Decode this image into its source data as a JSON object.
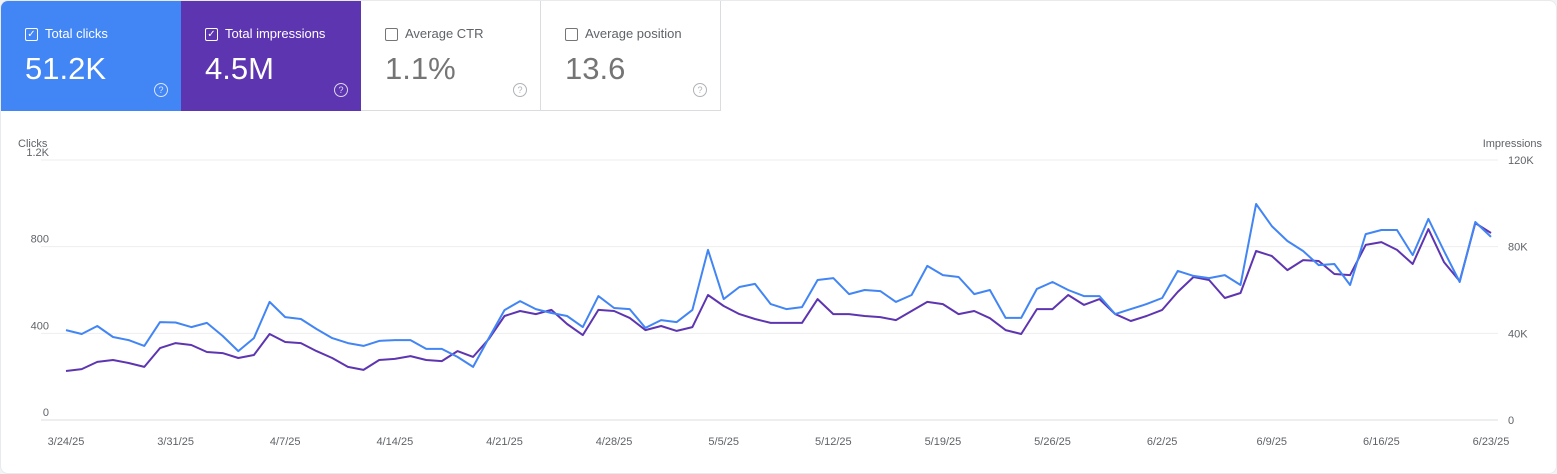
{
  "cards": [
    {
      "label": "Total clicks",
      "value": "51.2K",
      "checked": true,
      "color": "#4285f4"
    },
    {
      "label": "Total impressions",
      "value": "4.5M",
      "checked": true,
      "color": "#5e35b1"
    },
    {
      "label": "Average CTR",
      "value": "1.1%",
      "checked": false
    },
    {
      "label": "Average position",
      "value": "13.6",
      "checked": false
    }
  ],
  "help_icon": "?",
  "check_icon": "✓",
  "chart_data": {
    "type": "line",
    "left_axis_title": "Clicks",
    "right_axis_title": "Impressions",
    "left_ticks": [
      "0",
      "400",
      "800",
      "1.2K"
    ],
    "right_ticks": [
      "0",
      "40K",
      "80K",
      "120K"
    ],
    "left_ylim": [
      0,
      1200
    ],
    "right_ylim": [
      0,
      120000
    ],
    "grid": true,
    "x_tick_labels": [
      "3/24/25",
      "3/31/25",
      "4/7/25",
      "4/14/25",
      "4/21/25",
      "4/28/25",
      "5/5/25",
      "5/12/25",
      "5/19/25",
      "5/26/25",
      "6/2/25",
      "6/9/25",
      "6/16/25",
      "6/23/25"
    ],
    "x": [
      "3/24/25",
      "3/25/25",
      "3/26/25",
      "3/27/25",
      "3/28/25",
      "3/29/25",
      "3/30/25",
      "3/31/25",
      "4/1/25",
      "4/2/25",
      "4/3/25",
      "4/4/25",
      "4/5/25",
      "4/6/25",
      "4/7/25",
      "4/8/25",
      "4/9/25",
      "4/10/25",
      "4/11/25",
      "4/12/25",
      "4/13/25",
      "4/14/25",
      "4/15/25",
      "4/16/25",
      "4/17/25",
      "4/18/25",
      "4/19/25",
      "4/20/25",
      "4/21/25",
      "4/22/25",
      "4/23/25",
      "4/24/25",
      "4/25/25",
      "4/26/25",
      "4/27/25",
      "4/28/25",
      "4/29/25",
      "4/30/25",
      "5/1/25",
      "5/2/25",
      "5/3/25",
      "5/4/25",
      "5/5/25",
      "5/6/25",
      "5/7/25",
      "5/8/25",
      "5/9/25",
      "5/10/25",
      "5/11/25",
      "5/12/25",
      "5/13/25",
      "5/14/25",
      "5/15/25",
      "5/16/25",
      "5/17/25",
      "5/18/25",
      "5/19/25",
      "5/20/25",
      "5/21/25",
      "5/22/25",
      "5/23/25",
      "5/24/25",
      "5/25/25",
      "5/26/25",
      "5/27/25",
      "5/28/25",
      "5/29/25",
      "5/30/25",
      "5/31/25",
      "6/1/25",
      "6/2/25",
      "6/3/25",
      "6/4/25",
      "6/5/25",
      "6/6/25",
      "6/7/25",
      "6/8/25",
      "6/9/25",
      "6/10/25",
      "6/11/25",
      "6/12/25",
      "6/13/25",
      "6/14/25",
      "6/15/25",
      "6/16/25",
      "6/17/25",
      "6/18/25",
      "6/19/25",
      "6/20/25",
      "6/21/25",
      "6/22/25",
      "6/23/25"
    ],
    "series": [
      {
        "name": "Clicks",
        "axis": "left",
        "color": "#4285f4",
        "values": [
          415,
          397,
          434,
          383,
          369,
          342,
          452,
          450,
          429,
          448,
          388,
          318,
          378,
          545,
          475,
          466,
          420,
          378,
          355,
          342,
          365,
          369,
          369,
          328,
          328,
          291,
          245,
          378,
          507,
          549,
          512,
          494,
          480,
          429,
          572,
          517,
          512,
          425,
          461,
          452,
          508,
          785,
          558,
          614,
          628,
          535,
          512,
          521,
          646,
          655,
          581,
          600,
          595,
          545,
          577,
          711,
          669,
          660,
          581,
          600,
          471,
          471,
          605,
          637,
          600,
          572,
          572,
          489,
          512,
          535,
          563,
          688,
          665,
          655,
          669,
          623,
          997,
          895,
          826,
          780,
          715,
          720,
          623,
          858,
          877,
          877,
          761,
          928,
          780,
          637,
          914,
          845
        ]
      },
      {
        "name": "Impressions",
        "axis": "right",
        "color": "#5e35b1",
        "values": [
          22600,
          23500,
          26800,
          27700,
          26300,
          24500,
          33200,
          35500,
          34600,
          31400,
          30900,
          28600,
          30000,
          39700,
          36000,
          35500,
          31800,
          28600,
          24500,
          23100,
          27700,
          28200,
          29500,
          27700,
          27200,
          31800,
          29100,
          37400,
          48000,
          50300,
          48900,
          50800,
          44300,
          39200,
          50800,
          50300,
          47100,
          41500,
          43400,
          41100,
          42900,
          57700,
          52600,
          48900,
          46600,
          44800,
          44800,
          44800,
          55800,
          48900,
          48900,
          48000,
          47500,
          46100,
          50300,
          54500,
          53500,
          48900,
          50300,
          47000,
          41500,
          39700,
          51200,
          51200,
          57700,
          53100,
          55800,
          48900,
          45700,
          48000,
          50800,
          59100,
          66000,
          64600,
          56300,
          58600,
          78000,
          75700,
          69200,
          73800,
          73400,
          67400,
          66900,
          80800,
          82100,
          78500,
          72000,
          88100,
          72900,
          64100,
          90900,
          86300
        ]
      }
    ]
  }
}
